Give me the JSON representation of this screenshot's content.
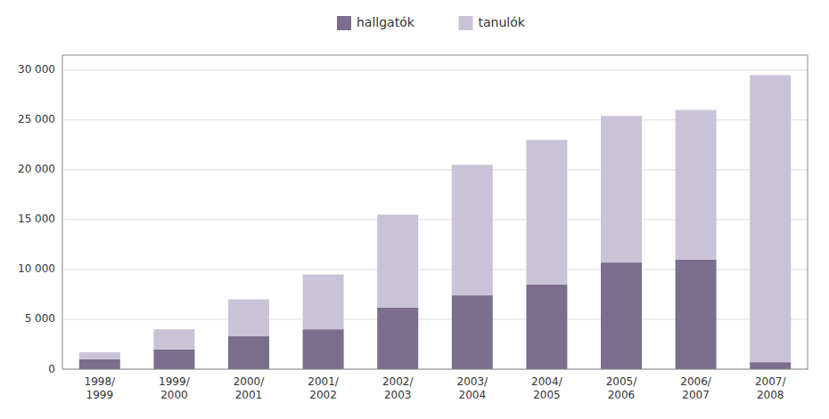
{
  "chart_data": {
    "type": "bar",
    "stacked": true,
    "categories": [
      "1998/\n1999",
      "1999/\n2000",
      "2000/\n2001",
      "2001/\n2002",
      "2002/\n2003",
      "2003/\n2004",
      "2004/\n2005",
      "2005/\n2006",
      "2006/\n2007",
      "2007/\n2008"
    ],
    "series": [
      {
        "name": "hallgatók",
        "color": "#7b6d8d",
        "values": [
          1000,
          2000,
          3300,
          4000,
          6200,
          7400,
          8500,
          10700,
          11000,
          700
        ]
      },
      {
        "name": "tanulók",
        "color": "#cac3d8",
        "values": [
          700,
          2000,
          3700,
          5500,
          9300,
          13100,
          14500,
          14700,
          15000,
          28800
        ]
      }
    ],
    "ylim": [
      0,
      31500
    ],
    "yticks": [
      0,
      {
        "value": 5000,
        "label": "5 000"
      },
      {
        "value": 10000,
        "label": "10 000"
      },
      {
        "value": 15000,
        "label": "15 000"
      },
      {
        "value": 20000,
        "label": "20 000"
      },
      {
        "value": 25000,
        "label": "25 000"
      },
      {
        "value": 30000,
        "label": "30 000"
      }
    ],
    "grid": true,
    "legend": "top"
  }
}
